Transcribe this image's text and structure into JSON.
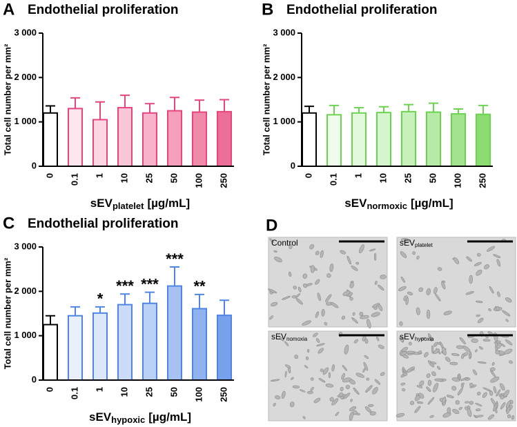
{
  "chart_data": [
    {
      "type": "bar",
      "panel": "A",
      "title": "Endothelial proliferation",
      "y_label": "Total cell number per mm²",
      "x_label": {
        "main": "sEV",
        "sub": "platelet",
        "tail": "[µg/mL]"
      },
      "categories": [
        "0",
        "0.1",
        "1",
        "10",
        "25",
        "50",
        "100",
        "250"
      ],
      "values": [
        1200,
        1300,
        1050,
        1320,
        1200,
        1250,
        1220,
        1230
      ],
      "errors": [
        160,
        240,
        400,
        280,
        210,
        300,
        270,
        270
      ],
      "colors": [
        "#000000",
        "#e8457f",
        "#e8457f",
        "#e8457f",
        "#e8457f",
        "#e8457f",
        "#e8457f",
        "#e8457f"
      ],
      "fills": [
        "#ffffff",
        "#fde6ee",
        "#fbd7e3",
        "#f9c6d7",
        "#f7b3c9",
        "#f49fbb",
        "#f189ab",
        "#ed6e97"
      ],
      "ylim": [
        0,
        3000
      ],
      "yticks": [
        0,
        {
          "value": 1000,
          "label": "1 000"
        },
        {
          "value": 2000,
          "label": "2 000"
        },
        {
          "value": 3000,
          "label": "3 000"
        }
      ]
    },
    {
      "type": "bar",
      "panel": "B",
      "title": "Endothelial proliferation",
      "y_label": "Total cell number per mm²",
      "x_label": {
        "main": "sEV",
        "sub": "normoxic",
        "tail": "[µg/mL]"
      },
      "categories": [
        "0",
        "0.1",
        "1",
        "10",
        "25",
        "50",
        "100",
        "250"
      ],
      "values": [
        1200,
        1160,
        1200,
        1210,
        1230,
        1220,
        1180,
        1170
      ],
      "errors": [
        150,
        210,
        120,
        130,
        160,
        200,
        110,
        200
      ],
      "colors": [
        "#000000",
        "#6bd44f",
        "#6bd44f",
        "#6bd44f",
        "#6bd44f",
        "#6bd44f",
        "#6bd44f",
        "#6bd44f"
      ],
      "fills": [
        "#ffffff",
        "#effbec",
        "#e3f8dd",
        "#d6f4cd",
        "#c8f0bc",
        "#b6eaa6",
        "#a2e48d",
        "#8bdc71"
      ],
      "ylim": [
        0,
        3000
      ],
      "yticks": [
        0,
        {
          "value": 1000,
          "label": "1 000"
        },
        {
          "value": 2000,
          "label": "2 000"
        },
        {
          "value": 3000,
          "label": "3 000"
        }
      ]
    },
    {
      "type": "bar",
      "panel": "C",
      "title": "Endothelial proliferation",
      "y_label": "Total cell number per mm²",
      "x_label": {
        "main": "sEV",
        "sub": "hypoxic",
        "tail": "[µg/mL]"
      },
      "categories": [
        "0",
        "0.1",
        "1",
        "10",
        "25",
        "50",
        "100",
        "250"
      ],
      "values": [
        1250,
        1450,
        1510,
        1700,
        1730,
        2120,
        1610,
        1460
      ],
      "errors": [
        200,
        200,
        140,
        240,
        250,
        430,
        320,
        340
      ],
      "annotations": [
        null,
        null,
        "*",
        "***",
        "***",
        "***",
        "**",
        null
      ],
      "colors": [
        "#000000",
        "#4f86e6",
        "#4f86e6",
        "#4f86e6",
        "#4f86e6",
        "#4f86e6",
        "#4f86e6",
        "#4f86e6"
      ],
      "fills": [
        "#ffffff",
        "#e9f0fc",
        "#dce7fa",
        "#ccdcf8",
        "#bbd0f5",
        "#a7c2f2",
        "#90b2ee",
        "#77a1ea"
      ],
      "ylim": [
        0,
        3000
      ],
      "yticks": [
        0,
        {
          "value": 1000,
          "label": "1 000"
        },
        {
          "value": 2000,
          "label": "2 000"
        },
        {
          "value": 3000,
          "label": "3 000"
        }
      ]
    }
  ],
  "image_panel": {
    "panel": "D",
    "images": [
      {
        "main": "Control",
        "sub": null
      },
      {
        "main": "sEV",
        "sub": "platelet"
      },
      {
        "main": "sEV",
        "sub": "nomoxia"
      },
      {
        "main": "sEV",
        "sub": "hypoxia"
      }
    ]
  }
}
